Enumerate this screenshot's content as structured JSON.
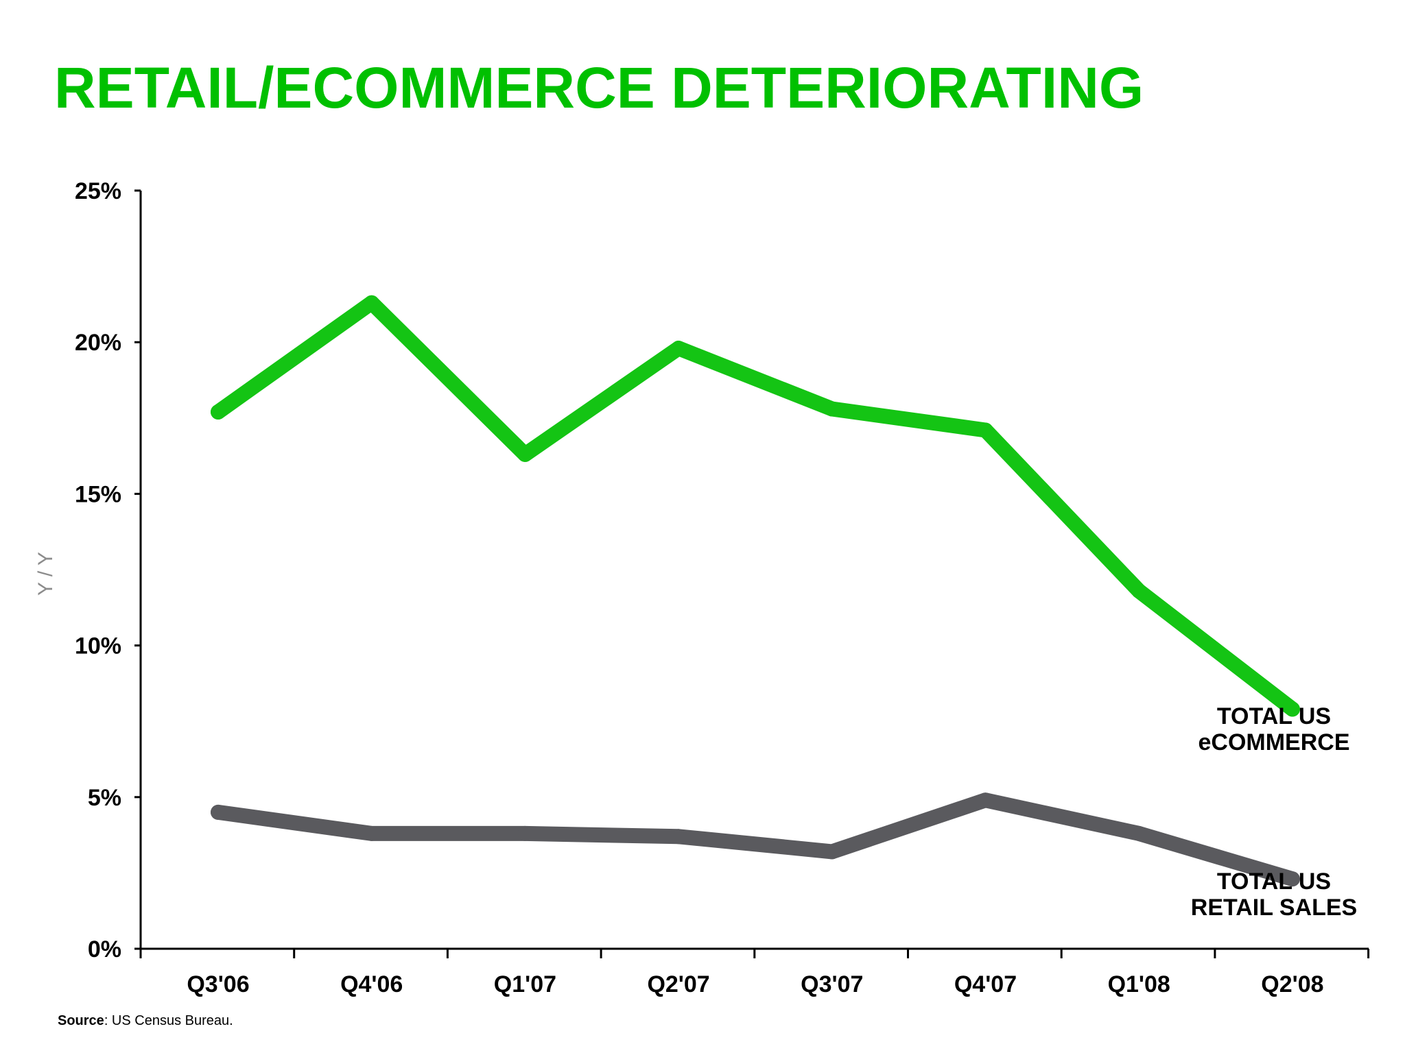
{
  "title": "RETAIL/ECOMMERCE DETERIORATING",
  "footer": {
    "source_label": "Source",
    "source_text": ": US Census Bureau."
  },
  "colors": {
    "title": "#00c000",
    "ecommerce": "#14c414",
    "retail": "#5a5a5e",
    "axis": "#000000"
  },
  "chart_data": {
    "type": "line",
    "title": "",
    "xlabel": "",
    "ylabel": "Y / Y",
    "categories": [
      "Q3'06",
      "Q4'06",
      "Q1'07",
      "Q2'07",
      "Q3'07",
      "Q4'07",
      "Q1'08",
      "Q2'08"
    ],
    "ylim": [
      0,
      25
    ],
    "yticks": [
      0,
      5,
      10,
      15,
      20,
      25
    ],
    "ytick_labels": [
      "0%",
      "5%",
      "10%",
      "15%",
      "20%",
      "25%"
    ],
    "grid": false,
    "legend": "none",
    "series": [
      {
        "name": "TOTAL US eCOMMERCE",
        "label_lines": [
          "TOTAL US",
          "eCOMMERCE"
        ],
        "color": "#14c414",
        "values": [
          17.7,
          21.3,
          16.3,
          19.8,
          17.8,
          17.1,
          11.8,
          7.9
        ]
      },
      {
        "name": "TOTAL US RETAIL SALES",
        "label_lines": [
          "TOTAL US",
          "RETAIL SALES"
        ],
        "color": "#5a5a5e",
        "values": [
          4.5,
          3.8,
          3.8,
          3.7,
          3.2,
          4.9,
          3.8,
          2.3
        ]
      }
    ]
  }
}
